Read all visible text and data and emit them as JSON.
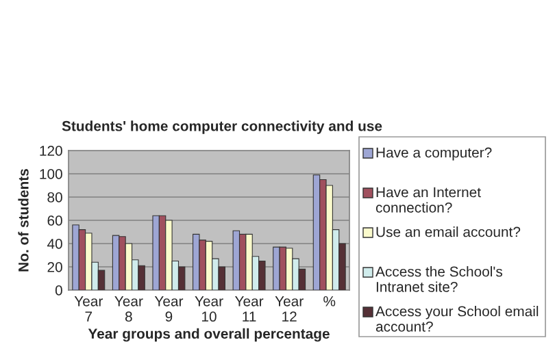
{
  "chart_data": {
    "type": "bar",
    "title": "Students' home computer connectivity and use",
    "xlabel": "Year groups and overall percentage",
    "ylabel": "No. of students",
    "categories": [
      "Year\n7",
      "Year\n8",
      "Year\n9",
      "Year\n10",
      "Year\n11",
      "Year\n12",
      "%"
    ],
    "series": [
      {
        "name": "Have a computer?",
        "color": "#9ea6d4",
        "values": [
          56,
          47,
          64,
          48,
          51,
          37,
          99
        ]
      },
      {
        "name": "Have an Internet connection?",
        "color": "#a0505e",
        "values": [
          52,
          46,
          64,
          43,
          48,
          37,
          95
        ]
      },
      {
        "name": "Use an email account?",
        "color": "#fafacc",
        "values": [
          49,
          40,
          60,
          42,
          48,
          36,
          90
        ]
      },
      {
        "name": "Access the School's Intranet site?",
        "color": "#d0ecec",
        "values": [
          24,
          26,
          25,
          27,
          29,
          27,
          52
        ]
      },
      {
        "name": "Access your School email account?",
        "color": "#553036",
        "values": [
          17,
          21,
          20,
          20,
          25,
          18,
          40
        ]
      }
    ],
    "ylim": [
      0,
      120
    ],
    "yticks": [
      0,
      20,
      40,
      60,
      80,
      100,
      120
    ],
    "grid": "y",
    "legend": "right"
  }
}
